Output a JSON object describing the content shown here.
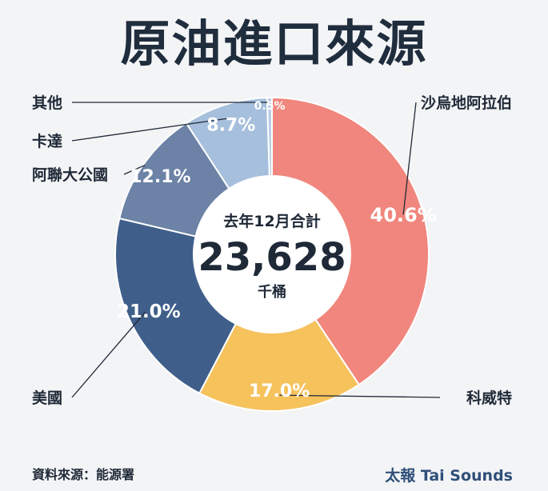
{
  "title": "原油進口來源",
  "center": {
    "label": "去年12月合計",
    "value": "23,628",
    "unit": "千桶"
  },
  "footer": {
    "source": "資料來源：能源署",
    "brand": "太報 Tai Sounds"
  },
  "chart_data": {
    "type": "pie",
    "donut": true,
    "categories": [
      "沙烏地阿拉伯",
      "科威特",
      "美國",
      "阿聯大公國",
      "卡達",
      "其他"
    ],
    "values": [
      40.6,
      17.0,
      21.0,
      12.1,
      8.7,
      0.5
    ],
    "value_labels": [
      "40.6%",
      "17.0%",
      "21.0%",
      "12.1%",
      "8.7%",
      "0.5%"
    ],
    "colors": [
      "#f0867d",
      "#f5c25c",
      "#3f5f8a",
      "#6c82a6",
      "#a6bfdc",
      "#b9cde6"
    ],
    "label_colors": [
      "#ffffff",
      "#ffffff",
      "#ffffff",
      "#ffffff",
      "#ffffff",
      "#ffffff"
    ]
  }
}
